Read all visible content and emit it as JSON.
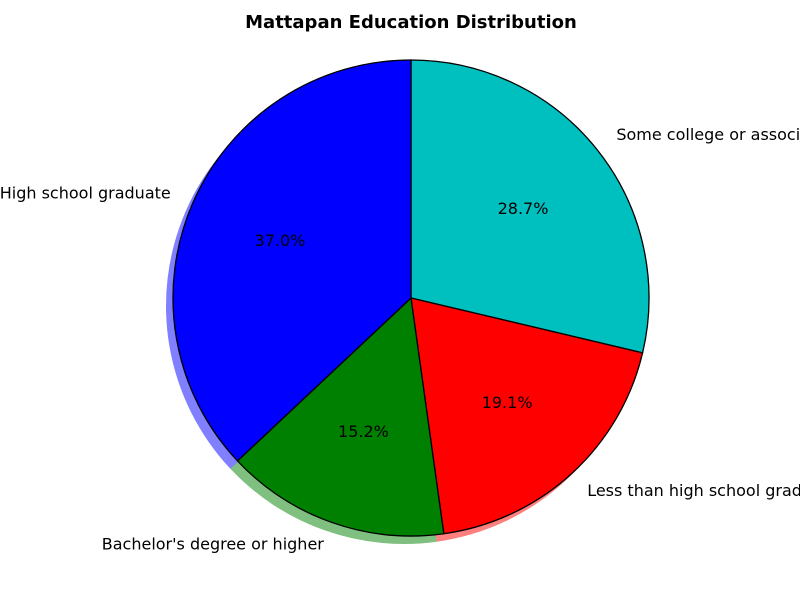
{
  "chart_data": {
    "type": "pie",
    "title": "Mattapan Education Distribution",
    "slices": [
      {
        "label": "Some college or associate's degree",
        "value": 28.7,
        "pct_label": "28.7%",
        "color": "#00bfbf"
      },
      {
        "label": "Less than high school graduate",
        "value": 19.1,
        "pct_label": "19.1%",
        "color": "#ff0000"
      },
      {
        "label": "Bachelor's degree or higher",
        "value": 15.2,
        "pct_label": "15.2%",
        "color": "#008000"
      },
      {
        "label": "High school graduate",
        "value": 37.0,
        "pct_label": "37.0%",
        "color": "#0000ff"
      }
    ],
    "start_angle_deg": 90,
    "direction": "clockwise",
    "shadow": true,
    "edge_color": "#000000",
    "legend": "none"
  }
}
